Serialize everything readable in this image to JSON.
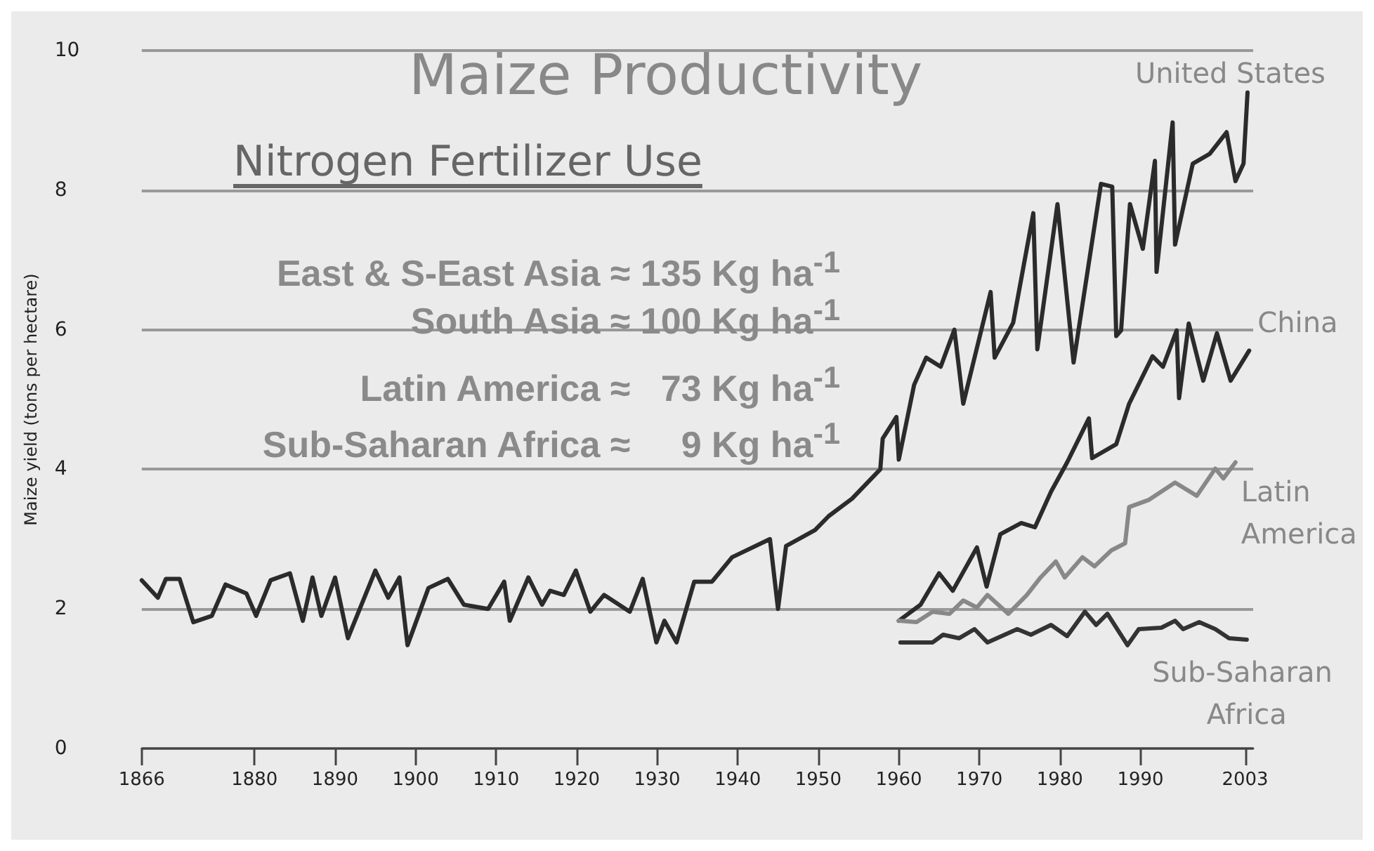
{
  "chart_data": {
    "type": "line",
    "title": "Maize Productivity",
    "subtitle": "Nitrogen Fertilizer Use",
    "ylabel": "Maize yield (tons per hectare)",
    "annotations": [
      "East & S-East Asia ≈ 135 Kg ha$^{-1}$",
      "South Asia ≈ 100 Kg ha$^{-1}$",
      "Latin America ≈   73 Kg ha$^{-1}$",
      "Sub-Saharan Africa ≈     9 Kg ha$^{-1}$"
    ],
    "xlim": [
      1866,
      2004
    ],
    "xticks": [
      1866,
      1880,
      1890,
      1900,
      1910,
      1920,
      1930,
      1940,
      1950,
      1960,
      1970,
      1980,
      1990,
      2003
    ],
    "ylim": [
      0,
      10
    ],
    "yticks": [
      0,
      2,
      4,
      6,
      8,
      10
    ],
    "grid": "y",
    "marker": "none",
    "line_style": "solid",
    "series": [
      {
        "name": "United States",
        "color": "#2b2b2b",
        "x": [
          1866,
          1868,
          1869,
          1870.7,
          1872.4,
          1874.7,
          1876.4,
          1879,
          1880.2,
          1882,
          1884.4,
          1886,
          1887.2,
          1888.3,
          1890,
          1891.6,
          1895,
          1896.6,
          1898,
          1899,
          1901.6,
          1904,
          1906,
          1909,
          1911,
          1911.7,
          1914,
          1915.7,
          1916.7,
          1918.4,
          1919.9,
          1921.7,
          1923.4,
          1926.6,
          1928.2,
          1929.9,
          1930.9,
          1932.4,
          1934.6,
          1936.8,
          1939.3,
          1944,
          1945,
          1946,
          1949.6,
          1951.3,
          1954.2,
          1957.7,
          1958,
          1959.7,
          1960,
          1961.9,
          1963.4,
          1965.2,
          1966.9,
          1968,
          1971.4,
          1971.9,
          1974.2,
          1976.7,
          1977.2,
          1979.7,
          1981.7,
          1985.1,
          1986.5,
          1987,
          1987.6,
          1988.7,
          1990.3,
          1991.8,
          1992,
          1994,
          1994.3,
          1996.5,
          1998.6,
          2000.7,
          2001.8,
          2002.8,
          2003.3
        ],
        "values": [
          2.41,
          2.16,
          2.43,
          2.43,
          1.81,
          1.9,
          2.35,
          2.22,
          1.9,
          2.41,
          2.51,
          1.83,
          2.45,
          1.9,
          2.45,
          1.58,
          2.55,
          2.16,
          2.45,
          1.48,
          2.3,
          2.43,
          2.06,
          2.0,
          2.39,
          1.83,
          2.45,
          2.06,
          2.26,
          2.2,
          2.55,
          1.96,
          2.2,
          1.96,
          2.43,
          1.52,
          1.83,
          1.52,
          2.39,
          2.39,
          2.74,
          3.0,
          2.0,
          2.9,
          3.13,
          3.33,
          3.58,
          4.0,
          4.44,
          4.75,
          4.14,
          5.21,
          5.6,
          5.47,
          6.0,
          4.94,
          6.54,
          5.6,
          6.1,
          7.67,
          5.72,
          7.8,
          5.53,
          8.09,
          8.05,
          5.91,
          5.99,
          7.8,
          7.16,
          8.42,
          6.83,
          8.97,
          7.22,
          8.38,
          8.52,
          8.83,
          8.13,
          8.38,
          9.4
        ]
      },
      {
        "name": "China",
        "color": "#2b2b2b",
        "x": [
          1960,
          1962.7,
          1965,
          1966.7,
          1969.7,
          1970.9,
          1972.6,
          1975.2,
          1976.9,
          1978.9,
          1980.9,
          1983.6,
          1984,
          1987,
          1988.6,
          1991.5,
          1992.8,
          1994.5,
          1994.8,
          1996,
          1997.8,
          1999.5,
          2001.2,
          2003.5
        ],
        "values": [
          1.83,
          2.06,
          2.51,
          2.26,
          2.88,
          2.32,
          3.07,
          3.23,
          3.17,
          3.68,
          4.1,
          4.73,
          4.16,
          4.36,
          4.94,
          5.62,
          5.47,
          5.99,
          5.02,
          6.09,
          5.27,
          5.95,
          5.27,
          5.7
        ]
      },
      {
        "name": "Latin America",
        "color": "#888888",
        "x": [
          1960,
          1962.2,
          1964.2,
          1966.3,
          1968,
          1969.7,
          1971,
          1973.6,
          1975.9,
          1977.6,
          1979.5,
          1980.6,
          1982.8,
          1984.3,
          1986.4,
          1988.1,
          1988.6,
          1991,
          1994.3,
          1997,
          1999.3,
          2000.3,
          2001.8
        ],
        "values": [
          1.83,
          1.81,
          1.96,
          1.93,
          2.12,
          2.02,
          2.2,
          1.93,
          2.2,
          2.45,
          2.68,
          2.45,
          2.74,
          2.61,
          2.84,
          2.94,
          3.46,
          3.56,
          3.81,
          3.62,
          4.01,
          3.87,
          4.1
        ]
      },
      {
        "name": "Sub-Saharan Africa",
        "color": "#333333",
        "x": [
          1960.2,
          1964.2,
          1965.5,
          1967.5,
          1969.4,
          1971,
          1974.7,
          1976.4,
          1978.9,
          1980.9,
          1983.1,
          1984.5,
          1985.9,
          1988.4,
          1989.8,
          1992.6,
          1994.3,
          1995.3,
          1997.3,
          1999.3,
          2001,
          2003.2
        ],
        "values": [
          1.52,
          1.52,
          1.63,
          1.58,
          1.71,
          1.52,
          1.71,
          1.63,
          1.77,
          1.61,
          1.96,
          1.77,
          1.93,
          1.48,
          1.71,
          1.73,
          1.83,
          1.71,
          1.81,
          1.71,
          1.58,
          1.56
        ]
      }
    ]
  }
}
